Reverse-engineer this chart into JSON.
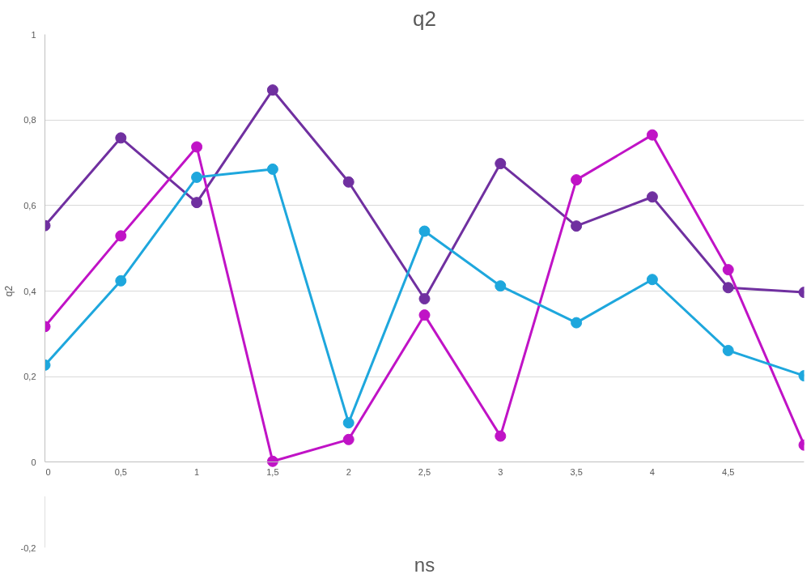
{
  "chart_data": {
    "type": "line",
    "title": "q2",
    "xlabel": "ns",
    "ylabel": "q2",
    "x": [
      0,
      0.5,
      1,
      1.5,
      2,
      2.5,
      3,
      3.5,
      4,
      4.5,
      5
    ],
    "series": [
      {
        "color": "#7030a0",
        "values": [
          0.553,
          0.758,
          0.607,
          0.87,
          0.655,
          0.382,
          0.698,
          0.552,
          0.62,
          0.408,
          0.397
        ]
      },
      {
        "color": "#c013c6",
        "values": [
          0.317,
          0.529,
          0.737,
          0.002,
          0.053,
          0.344,
          0.061,
          0.66,
          0.765,
          0.45,
          0.04
        ]
      },
      {
        "color": "#1ea7dd",
        "values": [
          0.227,
          0.424,
          0.666,
          0.685,
          0.092,
          0.54,
          0.412,
          0.326,
          0.427,
          0.261,
          0.202
        ]
      }
    ],
    "xlim": [
      0,
      5
    ],
    "ylim": [
      -0.2,
      1
    ],
    "xticks": [
      0,
      {
        "value": 0.5,
        "label": "0,5"
      },
      1,
      {
        "value": 1.5,
        "label": "1,5"
      },
      2,
      {
        "value": 2.5,
        "label": "2,5"
      },
      3,
      {
        "value": 3.5,
        "label": "3,5"
      },
      4,
      {
        "value": 4.5,
        "label": "4,5"
      }
    ],
    "yticks": [
      {
        "value": -0.2,
        "label": "-0,2"
      },
      0,
      {
        "value": 0.2,
        "label": "0,2"
      },
      {
        "value": 0.4,
        "label": "0,4"
      },
      {
        "value": 0.6,
        "label": "0,6"
      },
      {
        "value": 0.8,
        "label": "0,8"
      },
      1
    ],
    "grid": "y",
    "marker": "circle",
    "line_style": "solid"
  }
}
